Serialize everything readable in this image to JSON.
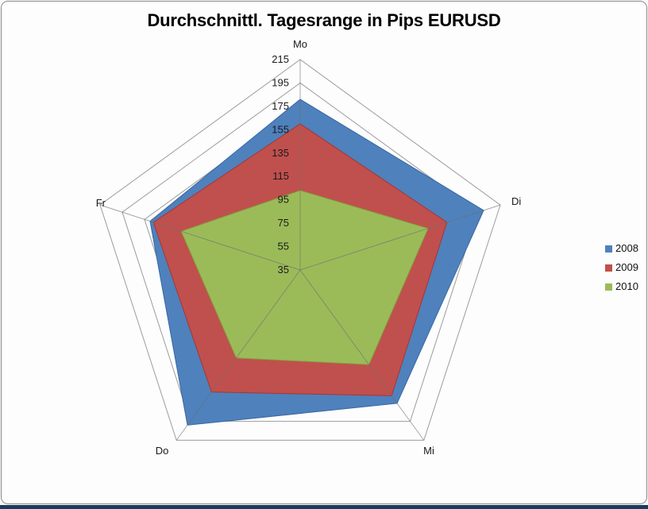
{
  "title": "Durchschnittl. Tagesrange in Pips EURUSD",
  "chart_data": {
    "type": "radar",
    "title": "Durchschnittl. Tagesrange in Pips EURUSD",
    "categories": [
      "Mo",
      "Di",
      "Mi",
      "Do",
      "Fr"
    ],
    "series": [
      {
        "name": "2008",
        "color": "#4F81BD",
        "values": [
          181,
          200,
          176,
          199,
          170
        ]
      },
      {
        "name": "2009",
        "color": "#C0504D",
        "values": [
          160,
          167,
          168,
          164,
          167
        ]
      },
      {
        "name": "2010",
        "color": "#9BBB59",
        "values": [
          103,
          150,
          135,
          128,
          142
        ]
      }
    ],
    "axis": {
      "min": 35,
      "max": 215,
      "step": 20,
      "ticks": [
        35,
        55,
        75,
        95,
        115,
        135,
        155,
        175,
        195,
        215
      ]
    },
    "grid": true,
    "legend_position": "right",
    "units": "Pips"
  },
  "window": {
    "background": "#F7FAF7",
    "border_color": "#8A8A8A",
    "bottom_bar_color": "#1C3A5E",
    "grid_color": "#9C9C9C",
    "spoke_color": "#6E6E6E",
    "text_color": "#1A1A1A"
  }
}
